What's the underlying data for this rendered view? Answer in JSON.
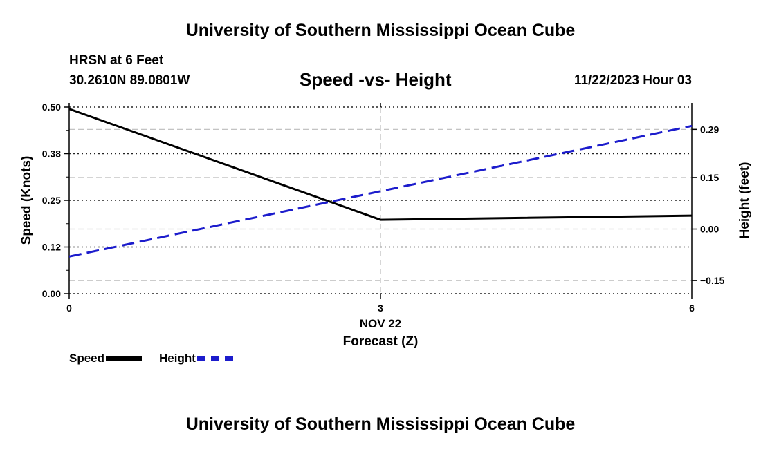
{
  "header": {
    "title": "University of Southern Mississippi Ocean Cube",
    "station": "HRSN at 6 Feet",
    "coordinates": "30.2610N  89.0801W",
    "subtitle": "Speed -vs- Height",
    "datetime": "11/22/2023 Hour 03"
  },
  "footer": {
    "title": "University of Southern Mississippi Ocean Cube"
  },
  "legend": {
    "speed_label": "Speed",
    "height_label": "Height"
  },
  "colors": {
    "speed": "#000000",
    "height": "#1c1ccc",
    "grid": "#bbbbbb"
  },
  "chart_data": {
    "type": "line",
    "title": "Speed -vs- Height",
    "xlabel": "Forecast (Z)",
    "x_date_label": "NOV 22",
    "x": [
      0,
      3,
      6
    ],
    "x_ticks": [
      0,
      3,
      6
    ],
    "x_tick_labels": [
      "0",
      "3",
      "6"
    ],
    "xlim": [
      0,
      6
    ],
    "left_axis": {
      "label": "Speed (Knots)",
      "ylim": [
        0,
        0.5
      ],
      "ticks": [
        0,
        0.125,
        0.25,
        0.375,
        0.5
      ],
      "tick_labels": [
        "0.00",
        "0.12",
        "0.25",
        "0.38",
        "0.50"
      ]
    },
    "right_axis": {
      "label": "Height (feet)",
      "ylim": [
        -0.188,
        0.355
      ],
      "ticks": [
        -0.15,
        0.0,
        0.15,
        0.29
      ],
      "tick_labels": [
        "−0.15",
        "0.00",
        "0.15",
        "0.29"
      ]
    },
    "series": [
      {
        "name": "Speed",
        "axis": "left",
        "style": "solid",
        "values": [
          0.495,
          0.198,
          0.209
        ]
      },
      {
        "name": "Height",
        "axis": "right",
        "style": "dashed",
        "values": [
          -0.08,
          0.11,
          0.3
        ]
      }
    ]
  }
}
